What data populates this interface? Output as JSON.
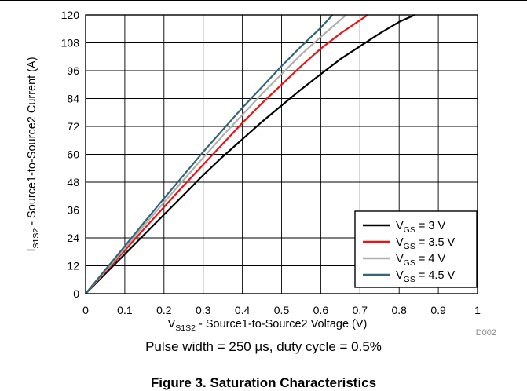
{
  "chart_data": {
    "type": "line",
    "xlabel": {
      "main": "V",
      "sub": "S1S2",
      "rest": " - Source1-to-Source2 Voltage (V)"
    },
    "ylabel": {
      "main": "I",
      "sub": "S1S2",
      "rest": " - Source1-to-Source2 Current (A)"
    },
    "xlim": [
      0,
      1
    ],
    "ylim": [
      0,
      120
    ],
    "xticks": [
      0,
      0.1,
      0.2,
      0.3,
      0.4,
      0.5,
      0.6,
      0.7,
      0.8,
      0.9,
      1
    ],
    "xtick_labels": [
      "0",
      "0.1",
      "0.2",
      "0.3",
      "0.4",
      "0.5",
      "0.6",
      "0.7",
      "0.8",
      "0.9",
      "1"
    ],
    "yticks": [
      0,
      12,
      24,
      36,
      48,
      60,
      72,
      84,
      96,
      108,
      120
    ],
    "ytick_labels": [
      "0",
      "12",
      "24",
      "36",
      "48",
      "60",
      "72",
      "84",
      "96",
      "108",
      "120"
    ],
    "grid": true,
    "legend_position": "bottom-right",
    "series": [
      {
        "name": "V_GS = 3 V",
        "label_main": "V",
        "label_sub": "GS",
        "label_rest": " = 3 V",
        "color": "#000000",
        "x": [
          0,
          0.05,
          0.1,
          0.15,
          0.2,
          0.25,
          0.3,
          0.35,
          0.4,
          0.45,
          0.5,
          0.55,
          0.6,
          0.65,
          0.7,
          0.75,
          0.8,
          0.84
        ],
        "y": [
          0,
          8.5,
          17,
          25.5,
          34,
          42.5,
          51,
          59,
          66.5,
          74,
          81,
          88,
          94.5,
          101,
          106.5,
          112,
          117,
          120
        ]
      },
      {
        "name": "V_GS = 3.5 V",
        "label_main": "V",
        "label_sub": "GS",
        "label_rest": " = 3.5 V",
        "color": "#ee1111",
        "x": [
          0,
          0.05,
          0.1,
          0.15,
          0.2,
          0.25,
          0.3,
          0.35,
          0.4,
          0.45,
          0.5,
          0.55,
          0.6,
          0.65,
          0.72
        ],
        "y": [
          0,
          9.3,
          18.6,
          28,
          37.3,
          46.5,
          55.5,
          64.5,
          73.5,
          82,
          90,
          98,
          105.5,
          112,
          120
        ]
      },
      {
        "name": "V_GS = 4 V",
        "label_main": "V",
        "label_sub": "GS",
        "label_rest": " = 4 V",
        "color": "#b0b0b0",
        "x": [
          0,
          0.05,
          0.1,
          0.15,
          0.2,
          0.25,
          0.3,
          0.35,
          0.4,
          0.45,
          0.5,
          0.55,
          0.6,
          0.665
        ],
        "y": [
          0,
          9.7,
          19.5,
          29.5,
          39.3,
          49,
          58.5,
          68,
          77,
          86,
          94.5,
          103,
          110.5,
          120
        ]
      },
      {
        "name": "V_GS = 4.5 V",
        "label_main": "V",
        "label_sub": "GS",
        "label_rest": " = 4.5 V",
        "color": "#336677",
        "x": [
          0,
          0.05,
          0.1,
          0.15,
          0.2,
          0.25,
          0.3,
          0.35,
          0.4,
          0.45,
          0.5,
          0.55,
          0.6,
          0.63
        ],
        "y": [
          0,
          10.2,
          20.5,
          30.8,
          41,
          51,
          61,
          70.5,
          80,
          89,
          98,
          106.5,
          114.5,
          120
        ]
      }
    ],
    "figure_code": "D002"
  },
  "caption": "Pulse width = 250 µs, duty cycle = 0.5%",
  "figure_title": "Figure 3. Saturation Characteristics"
}
